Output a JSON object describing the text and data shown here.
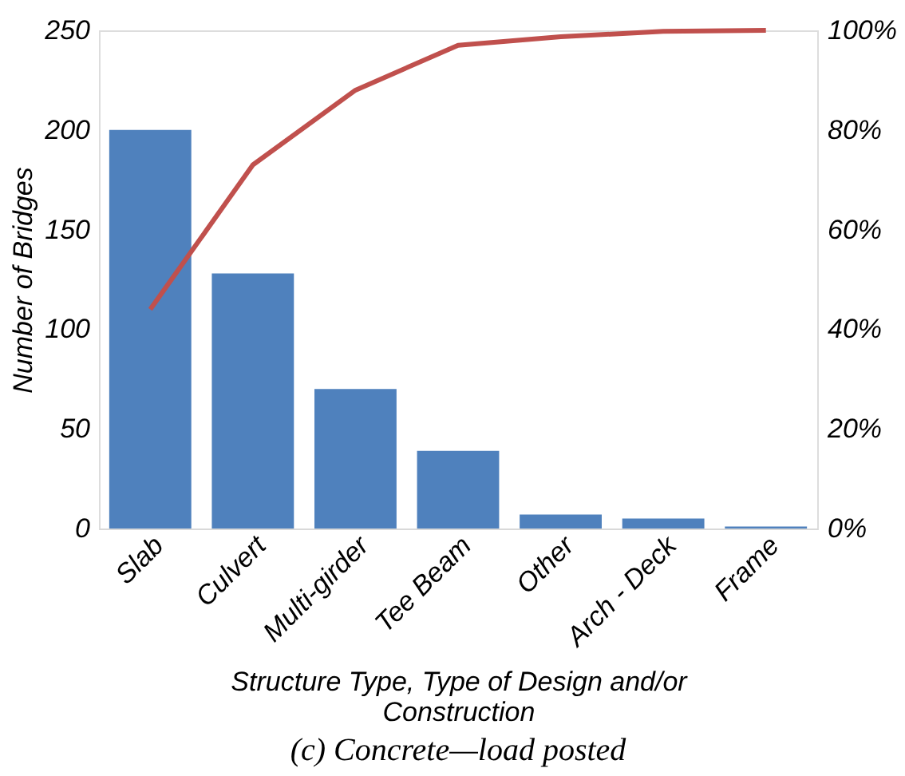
{
  "chart_data": {
    "type": "bar",
    "xlabel": "Structure Type, Type of Design and/or Construction",
    "ylabel": "Number of Bridges",
    "categories": [
      "Slab",
      "Culvert",
      "Multi-girder",
      "Tee Beam",
      "Other",
      "Arch - Deck",
      "Frame"
    ],
    "series": [
      {
        "color": "#4f81bd",
        "values": [
          200,
          128,
          70,
          39,
          7,
          5,
          1
        ]
      },
      {
        "type": "line",
        "axis": "y2",
        "color": "#c0504d",
        "values": [
          44,
          73,
          88,
          97,
          98.7,
          99.8,
          100
        ]
      }
    ],
    "ylim": [
      0,
      250
    ],
    "yticks": [
      0,
      50,
      100,
      150,
      200,
      250
    ],
    "y2lim": [
      0,
      100
    ],
    "y2ticks": [
      {
        "value": 0,
        "label": "0%"
      },
      {
        "value": 20,
        "label": "20%"
      },
      {
        "value": 40,
        "label": "40%"
      },
      {
        "value": 60,
        "label": "60%"
      },
      {
        "value": 80,
        "label": "80%"
      },
      {
        "value": 100,
        "label": "100%"
      }
    ],
    "grid": false,
    "marker": "none",
    "annotations": [
      "(c) Concrete—load posted"
    ]
  }
}
